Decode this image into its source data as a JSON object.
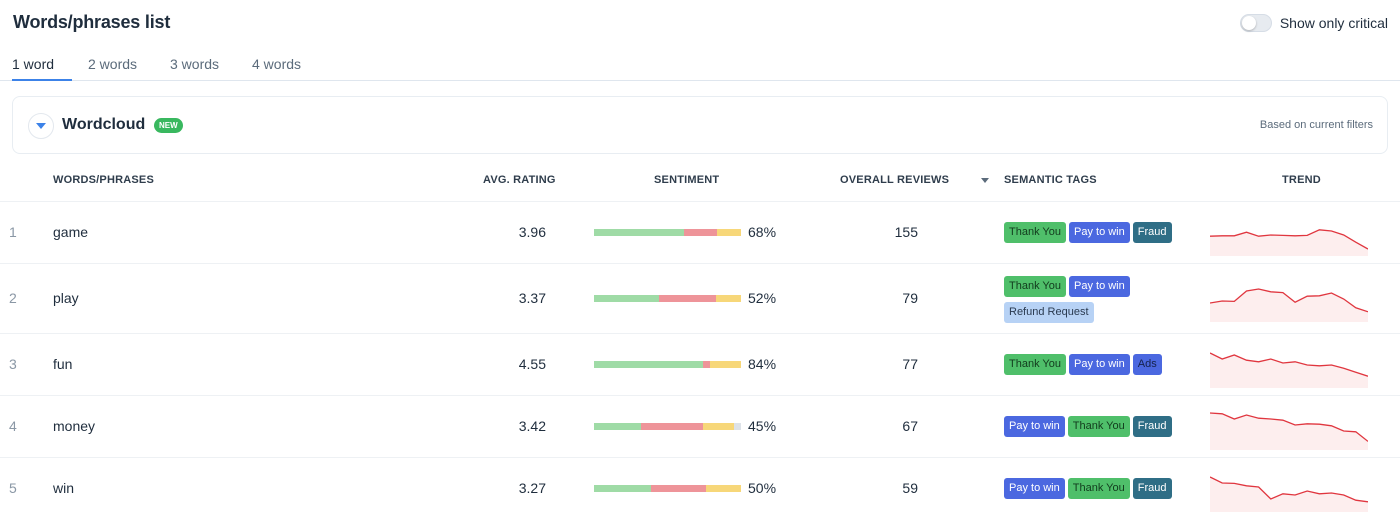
{
  "header": {
    "title": "Words/phrases list",
    "toggle_label": "Show only critical",
    "toggle_on": false
  },
  "tabs": [
    {
      "label": "1 word",
      "active": true
    },
    {
      "label": "2 words",
      "active": false
    },
    {
      "label": "3 words",
      "active": false
    },
    {
      "label": "4 words",
      "active": false
    }
  ],
  "wordcloud": {
    "title": "Wordcloud",
    "badge": "NEW",
    "note": "Based on current filters"
  },
  "columns": {
    "words": "WORDS/PHRASES",
    "rating": "AVG. RATING",
    "sentiment": "SENTIMENT",
    "reviews": "OVERALL REVIEWS",
    "tags": "SEMANTIC TAGS",
    "trend": "TREND"
  },
  "colors": {
    "accent": "#3c82e8",
    "positive": "#9fdba6",
    "negative": "#ee9499",
    "neutral": "#f7d779",
    "trend_line": "#e0363f",
    "trend_fill": "#fdeeee"
  },
  "rows": [
    {
      "index": "1",
      "word": "game",
      "rating": "3.96",
      "sentiment": {
        "positive": 0.61,
        "negative": 0.23,
        "neutral": 0.16,
        "other": 0
      },
      "percent": "68%",
      "reviews": "155",
      "tags": [
        {
          "label": "Thank You",
          "kind": "thank"
        },
        {
          "label": "Pay to win",
          "kind": "p2w"
        },
        {
          "label": "Fraud",
          "kind": "fraud"
        }
      ],
      "trend": [
        0.58,
        0.57,
        0.57,
        0.48,
        0.58,
        0.55,
        0.56,
        0.57,
        0.56,
        0.42,
        0.45,
        0.55,
        0.73,
        0.9
      ]
    },
    {
      "index": "2",
      "word": "play",
      "rating": "3.37",
      "sentiment": {
        "positive": 0.44,
        "negative": 0.39,
        "neutral": 0.17,
        "other": 0
      },
      "percent": "52%",
      "reviews": "79",
      "tags": [
        {
          "label": "Thank You",
          "kind": "thank"
        },
        {
          "label": "Pay to win",
          "kind": "p2w"
        },
        {
          "label": "Refund Request",
          "kind": "refund"
        }
      ],
      "trend": [
        0.6,
        0.55,
        0.56,
        0.3,
        0.25,
        0.32,
        0.34,
        0.58,
        0.43,
        0.42,
        0.35,
        0.5,
        0.72,
        0.82
      ]
    },
    {
      "index": "3",
      "word": "fun",
      "rating": "4.55",
      "sentiment": {
        "positive": 0.74,
        "negative": 0.05,
        "neutral": 0.21,
        "other": 0
      },
      "percent": "84%",
      "reviews": "77",
      "tags": [
        {
          "label": "Thank You",
          "kind": "thank"
        },
        {
          "label": "Pay to win",
          "kind": "p2w"
        },
        {
          "label": "Ads",
          "kind": "ads"
        }
      ],
      "trend": [
        0.2,
        0.35,
        0.25,
        0.38,
        0.42,
        0.35,
        0.45,
        0.42,
        0.5,
        0.52,
        0.5,
        0.58,
        0.68,
        0.78
      ]
    },
    {
      "index": "4",
      "word": "money",
      "rating": "3.42",
      "sentiment": {
        "positive": 0.32,
        "negative": 0.42,
        "neutral": 0.21,
        "other": 0.05
      },
      "percent": "45%",
      "reviews": "67",
      "tags": [
        {
          "label": "Pay to win",
          "kind": "p2w"
        },
        {
          "label": "Thank You",
          "kind": "thank"
        },
        {
          "label": "Fraud",
          "kind": "fraud"
        }
      ],
      "trend": [
        0.15,
        0.17,
        0.3,
        0.2,
        0.28,
        0.3,
        0.33,
        0.45,
        0.42,
        0.43,
        0.47,
        0.6,
        0.62,
        0.86
      ]
    },
    {
      "index": "5",
      "word": "win",
      "rating": "3.27",
      "sentiment": {
        "positive": 0.39,
        "negative": 0.37,
        "neutral": 0.24,
        "other": 0
      },
      "percent": "50%",
      "reviews": "59",
      "tags": [
        {
          "label": "Pay to win",
          "kind": "p2w"
        },
        {
          "label": "Thank You",
          "kind": "thank"
        },
        {
          "label": "Fraud",
          "kind": "fraud"
        }
      ],
      "trend": [
        0.2,
        0.35,
        0.36,
        0.42,
        0.45,
        0.75,
        0.62,
        0.65,
        0.55,
        0.62,
        0.6,
        0.65,
        0.78,
        0.82
      ]
    }
  ]
}
